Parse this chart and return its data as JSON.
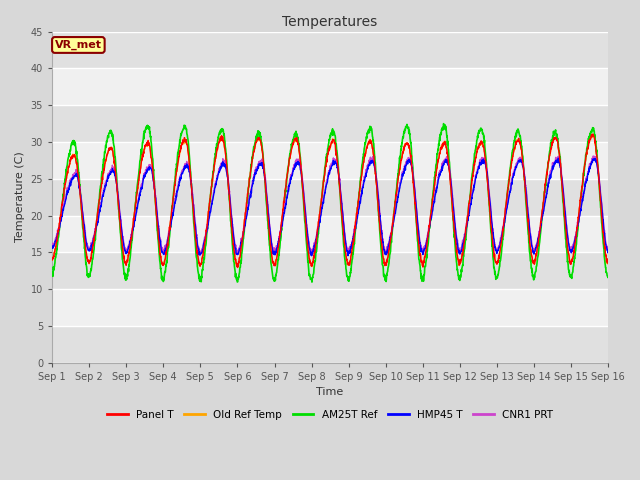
{
  "title": "Temperatures",
  "xlabel": "Time",
  "ylabel": "Temperature (C)",
  "ylim": [
    0,
    45
  ],
  "xlim": [
    0,
    15
  ],
  "x_tick_labels": [
    "Sep 1",
    "Sep 2",
    "Sep 3",
    "Sep 4",
    "Sep 5",
    "Sep 6",
    "Sep 7",
    "Sep 8",
    "Sep 9",
    "Sep 10",
    "Sep 11",
    "Sep 12",
    "Sep 13",
    "Sep 14",
    "Sep 15",
    "Sep 16"
  ],
  "bg_color": "#d8d8d8",
  "plot_bg_light": "#f0f0f0",
  "plot_bg_dark": "#e0e0e0",
  "annotation_text": "VR_met",
  "annotation_bg": "#ffff99",
  "annotation_border": "#8B0000",
  "series": {
    "Panel T": {
      "color": "#ff0000",
      "lw": 1.0
    },
    "Old Ref Temp": {
      "color": "#ffa500",
      "lw": 1.0
    },
    "AM25T Ref": {
      "color": "#00dd00",
      "lw": 1.2
    },
    "HMP45 T": {
      "color": "#0000ff",
      "lw": 1.0
    },
    "CNR1 PRT": {
      "color": "#cc44cc",
      "lw": 1.0
    }
  },
  "yticks": [
    0,
    5,
    10,
    15,
    20,
    25,
    30,
    35,
    40,
    45
  ],
  "grid_color": "#ffffff",
  "grid_lw": 1.0
}
